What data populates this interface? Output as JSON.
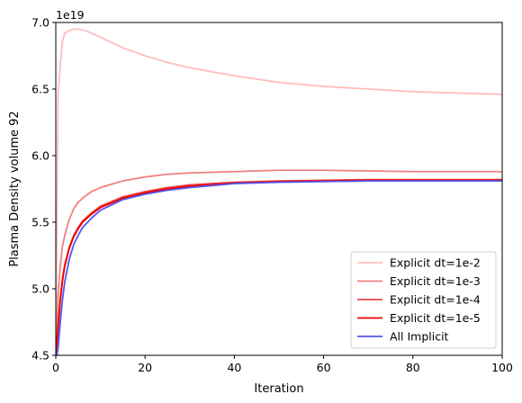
{
  "chart_data": {
    "type": "line",
    "title": "",
    "xlabel": "Iteration",
    "ylabel": "Plasma Density volume 92",
    "y_offset_text": "1e19",
    "xlim": [
      0,
      100
    ],
    "ylim": [
      4.5,
      7.0
    ],
    "x_ticks": [
      0,
      20,
      40,
      60,
      80,
      100
    ],
    "x_tick_labels": [
      "0",
      "20",
      "40",
      "60",
      "80",
      "100"
    ],
    "y_ticks": [
      4.5,
      5.0,
      5.5,
      6.0,
      6.5,
      7.0
    ],
    "y_tick_labels": [
      "4.5",
      "5.0",
      "5.5",
      "6.0",
      "6.5",
      "7.0"
    ],
    "grid": false,
    "legend_position": "lower-right",
    "series": [
      {
        "name": "Explicit dt=1e-2",
        "color": "#ffbdbd",
        "x": [
          0,
          0.5,
          1,
          1.5,
          2,
          3,
          4,
          5,
          6,
          8,
          10,
          15,
          20,
          25,
          30,
          40,
          50,
          60,
          70,
          80,
          90,
          100
        ],
        "y": [
          4.5,
          6.45,
          6.68,
          6.86,
          6.92,
          6.94,
          6.95,
          6.95,
          6.945,
          6.92,
          6.89,
          6.81,
          6.75,
          6.7,
          6.66,
          6.6,
          6.55,
          6.52,
          6.5,
          6.48,
          6.47,
          6.46
        ]
      },
      {
        "name": "Explicit dt=1e-3",
        "color": "#f08080",
        "x": [
          0,
          0.5,
          1,
          1.5,
          2,
          3,
          4,
          5,
          6,
          8,
          10,
          15,
          20,
          25,
          30,
          40,
          50,
          60,
          70,
          80,
          90,
          100
        ],
        "y": [
          4.5,
          4.95,
          5.17,
          5.32,
          5.4,
          5.52,
          5.6,
          5.65,
          5.68,
          5.73,
          5.76,
          5.81,
          5.84,
          5.86,
          5.87,
          5.88,
          5.89,
          5.89,
          5.885,
          5.88,
          5.88,
          5.88
        ]
      },
      {
        "name": "Explicit dt=1e-4",
        "color": "#e84848",
        "x": [
          0,
          0.5,
          1,
          1.5,
          2,
          3,
          4,
          5,
          6,
          8,
          10,
          15,
          20,
          25,
          30,
          40,
          50,
          60,
          70,
          80,
          90,
          100
        ],
        "y": [
          4.5,
          4.72,
          4.93,
          5.08,
          5.18,
          5.31,
          5.4,
          5.46,
          5.51,
          5.57,
          5.62,
          5.69,
          5.73,
          5.76,
          5.78,
          5.8,
          5.81,
          5.815,
          5.82,
          5.82,
          5.82,
          5.82
        ]
      },
      {
        "name": "Explicit dt=1e-5",
        "color": "#ee0000",
        "x": [
          0,
          0.5,
          1,
          1.5,
          2,
          3,
          4,
          5,
          6,
          8,
          10,
          15,
          20,
          25,
          30,
          40,
          50,
          60,
          70,
          80,
          90,
          100
        ],
        "y": [
          4.5,
          4.7,
          4.91,
          5.06,
          5.17,
          5.3,
          5.39,
          5.45,
          5.5,
          5.56,
          5.61,
          5.68,
          5.72,
          5.75,
          5.77,
          5.795,
          5.805,
          5.81,
          5.815,
          5.815,
          5.815,
          5.815
        ]
      },
      {
        "name": "All Implicit",
        "color": "#5555ee",
        "x": [
          0,
          0.5,
          1,
          1.5,
          2,
          3,
          4,
          5,
          6,
          8,
          10,
          15,
          20,
          25,
          30,
          40,
          50,
          60,
          70,
          80,
          90,
          100
        ],
        "y": [
          4.45,
          4.55,
          4.75,
          4.92,
          5.05,
          5.22,
          5.33,
          5.4,
          5.46,
          5.53,
          5.59,
          5.67,
          5.71,
          5.74,
          5.76,
          5.79,
          5.8,
          5.805,
          5.81,
          5.81,
          5.81,
          5.81
        ]
      }
    ]
  }
}
